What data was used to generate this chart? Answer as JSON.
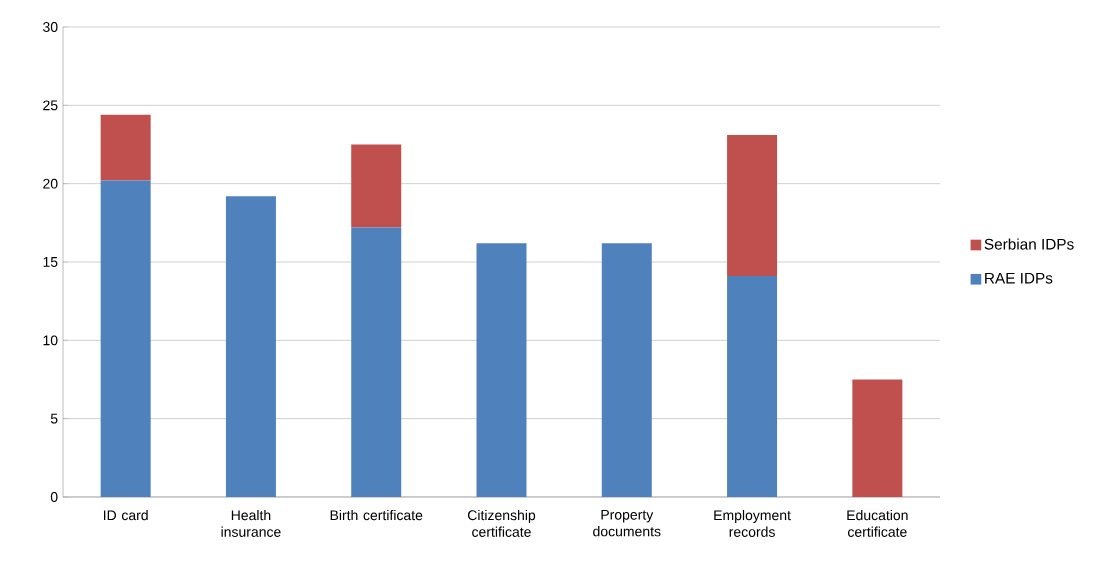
{
  "chart_data": {
    "type": "bar",
    "stacked": true,
    "categories": [
      "ID card",
      "Health insurance",
      "Birth certificate",
      "Citizenship certificate",
      "Property documents",
      "Employment records",
      "Education certificate"
    ],
    "series": [
      {
        "name": "RAE IDPs",
        "color": "#4f81bd",
        "values": [
          20.2,
          19.2,
          17.2,
          16.2,
          16.2,
          14.1,
          0
        ]
      },
      {
        "name": "Serbian IDPs",
        "color": "#c0504d",
        "values": [
          4.2,
          0,
          5.3,
          0,
          0,
          9.0,
          7.5
        ]
      }
    ],
    "ylim": [
      0,
      30
    ],
    "yticks": [
      0,
      5,
      10,
      15,
      20,
      25,
      30
    ],
    "grid": "y",
    "legend": "right"
  }
}
